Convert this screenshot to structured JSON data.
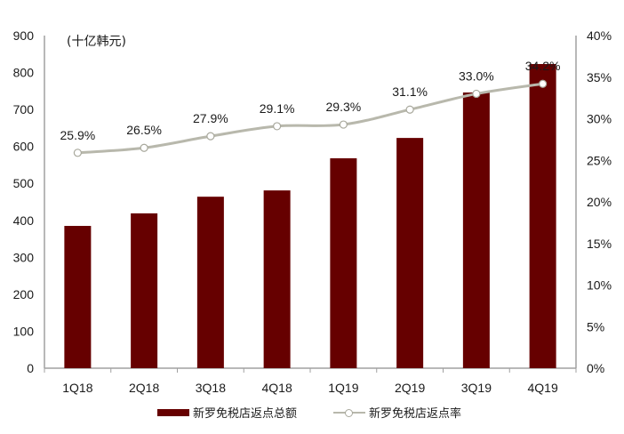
{
  "chart_data": {
    "type": "bar+line",
    "title": "",
    "unit_label": "(十亿韩元)",
    "categories": [
      "1Q18",
      "2Q18",
      "3Q18",
      "4Q18",
      "1Q19",
      "2Q19",
      "3Q19",
      "4Q19"
    ],
    "series": [
      {
        "name": "新罗免税店返点总额",
        "type": "bar",
        "axis": "left",
        "color": "#660000",
        "values": [
          385,
          419,
          464,
          481,
          568,
          623,
          746,
          823
        ]
      },
      {
        "name": "新罗免税店返点率",
        "type": "line",
        "axis": "right",
        "color": "#b8b8ac",
        "values": [
          25.9,
          26.5,
          27.9,
          29.1,
          29.3,
          31.1,
          33.0,
          34.2
        ],
        "labels": [
          "25.9%",
          "26.5%",
          "27.9%",
          "29.1%",
          "29.3%",
          "31.1%",
          "33.0%",
          "34.2%"
        ]
      }
    ],
    "y_left": {
      "min": 0,
      "max": 900,
      "ticks": [
        "0",
        "100",
        "200",
        "300",
        "400",
        "500",
        "600",
        "700",
        "800",
        "900"
      ]
    },
    "y_right": {
      "min": 0,
      "max": 40,
      "ticks": [
        "0%",
        "5%",
        "10%",
        "15%",
        "20%",
        "25%",
        "30%",
        "35%",
        "40%"
      ]
    },
    "grid": false,
    "legend_position": "bottom"
  },
  "legend": {
    "bar_label": "新罗免税店返点总额",
    "line_label": "新罗免税店返点率"
  }
}
